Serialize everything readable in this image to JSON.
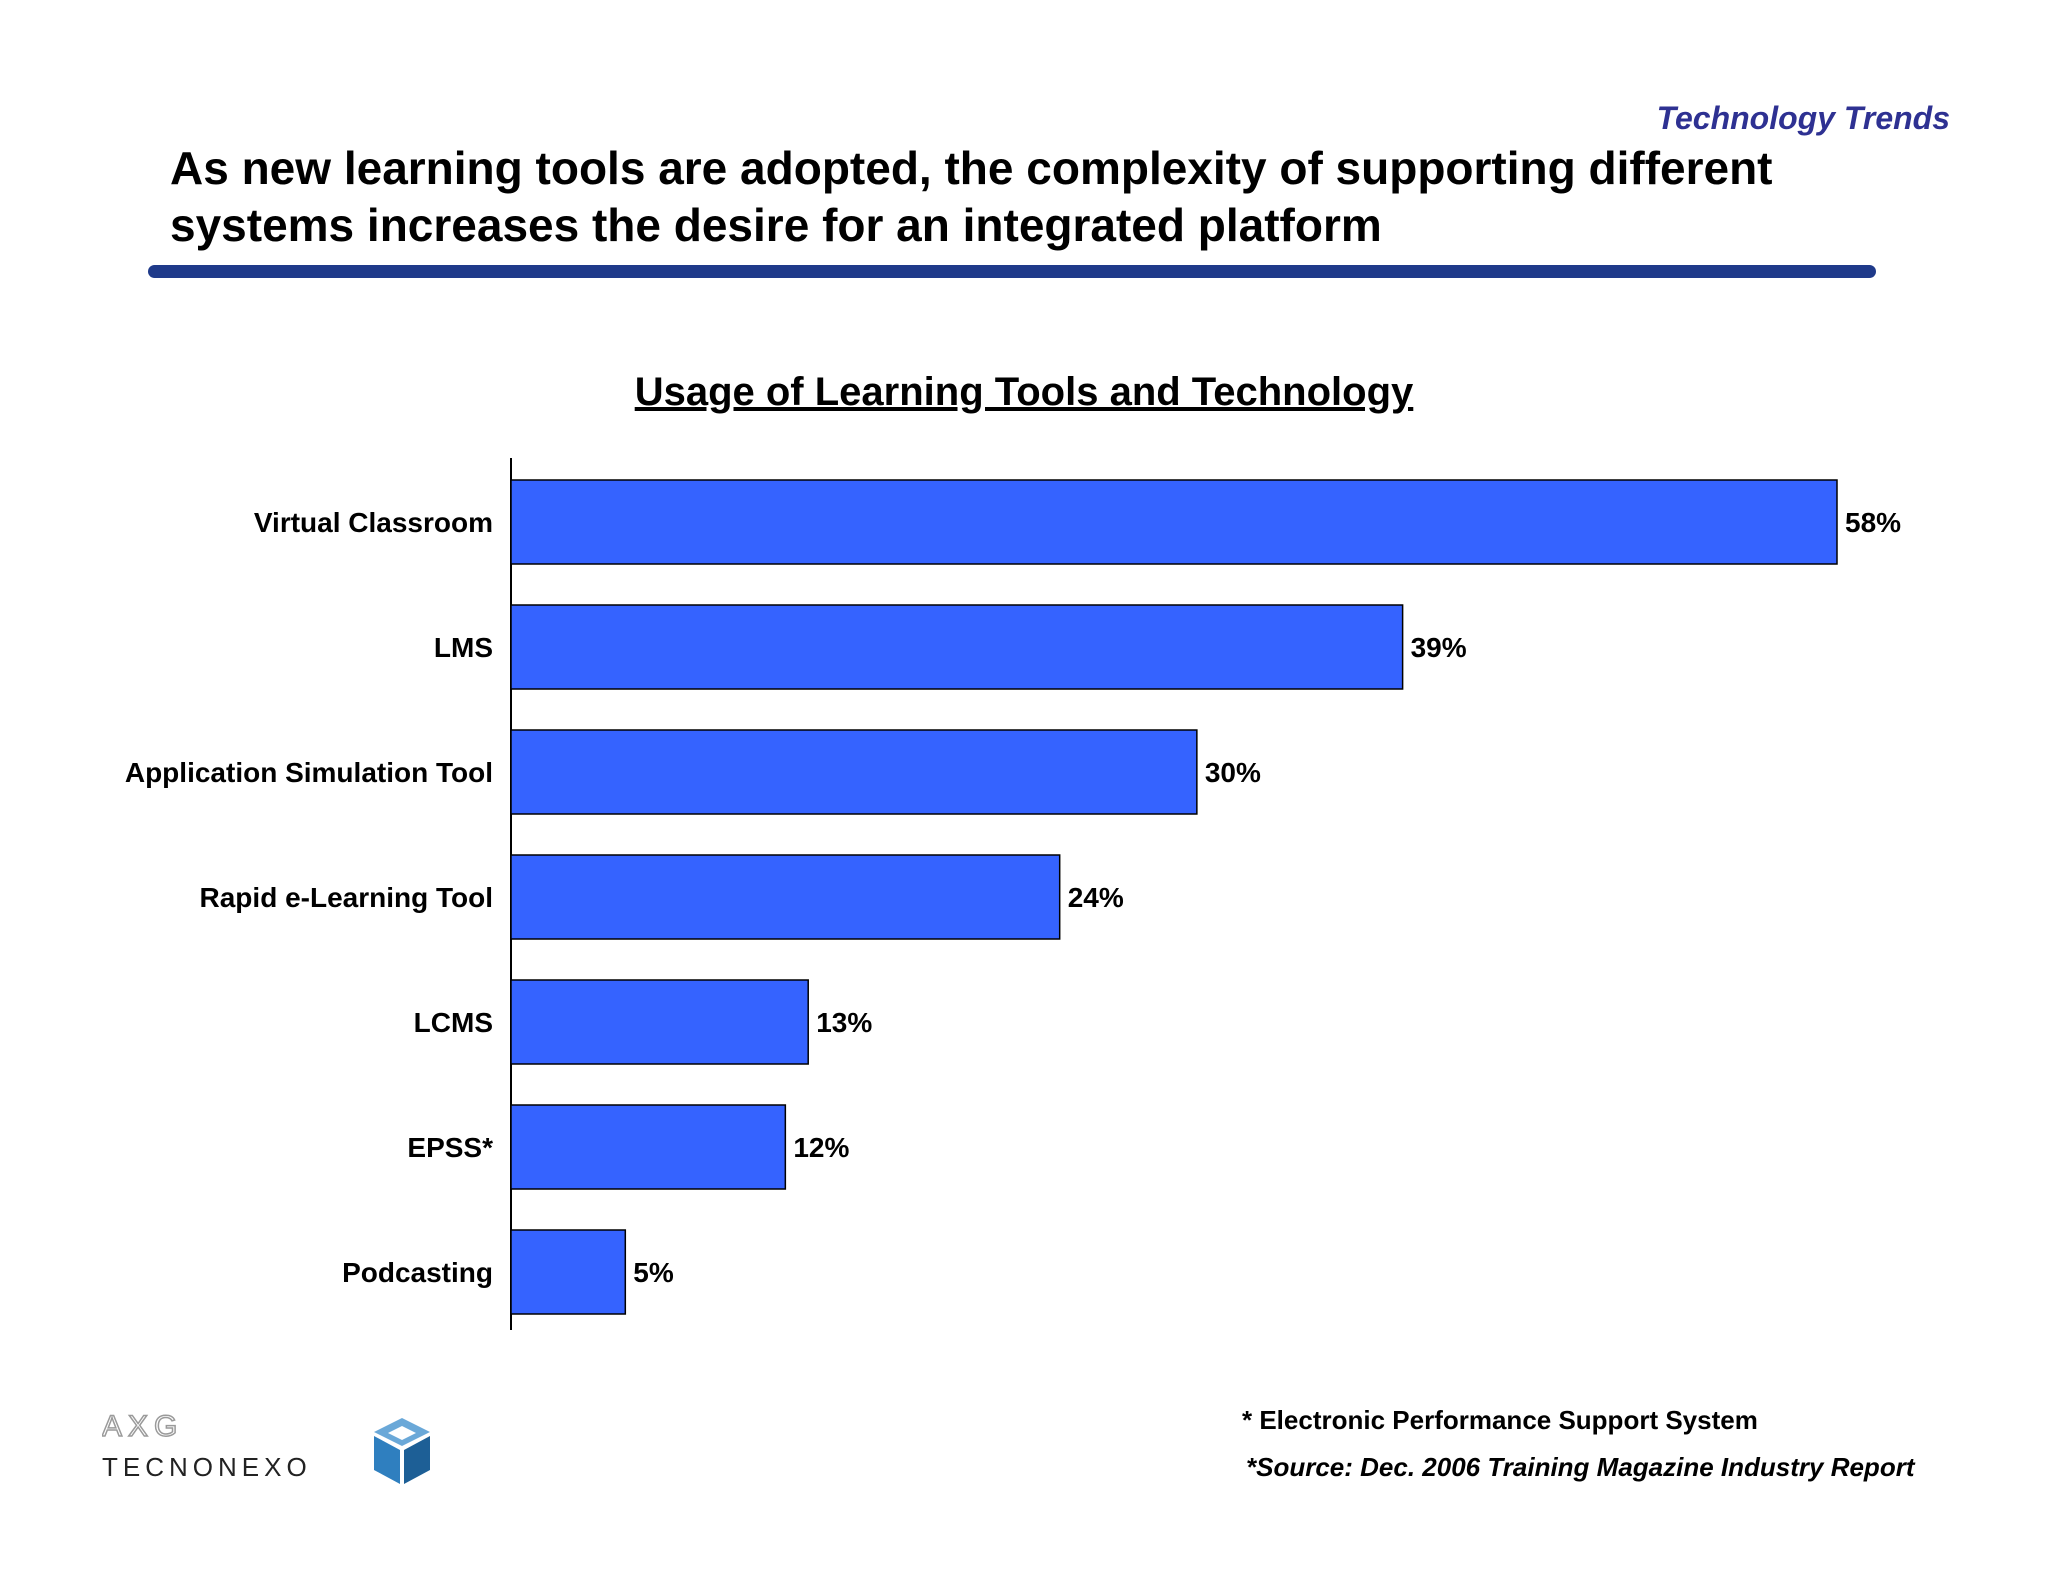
{
  "header": {
    "section_tag": "Technology Trends",
    "headline_line1": "As new learning tools are adopted, the complexity of supporting different",
    "headline_line2": "systems increases the desire for an integrated platform"
  },
  "chart_data": {
    "type": "bar",
    "orientation": "horizontal",
    "title": "Usage of Learning Tools and Technology",
    "categories": [
      "Virtual Classroom",
      "LMS",
      "Application Simulation Tool",
      "Rapid e-Learning Tool",
      "LCMS",
      "EPSS*",
      "Podcasting"
    ],
    "values": [
      58,
      39,
      30,
      24,
      13,
      12,
      5
    ],
    "value_labels": [
      "58%",
      "39%",
      "30%",
      "24%",
      "13%",
      "12%",
      "5%"
    ],
    "unit": "%",
    "xlim": [
      0,
      58
    ],
    "grid": false,
    "bar_color": "#3563ff"
  },
  "footer": {
    "footnote": "* Electronic Performance Support System",
    "source": "*Source: Dec. 2006 Training Magazine Industry Report"
  },
  "logo": {
    "text_top": "AXG",
    "text_bottom": "TECNONEXO",
    "icon": "cube-logo-icon"
  },
  "colors": {
    "accent": "#2e3192",
    "divider": "#1f3a8a",
    "bar": "#3563ff"
  }
}
